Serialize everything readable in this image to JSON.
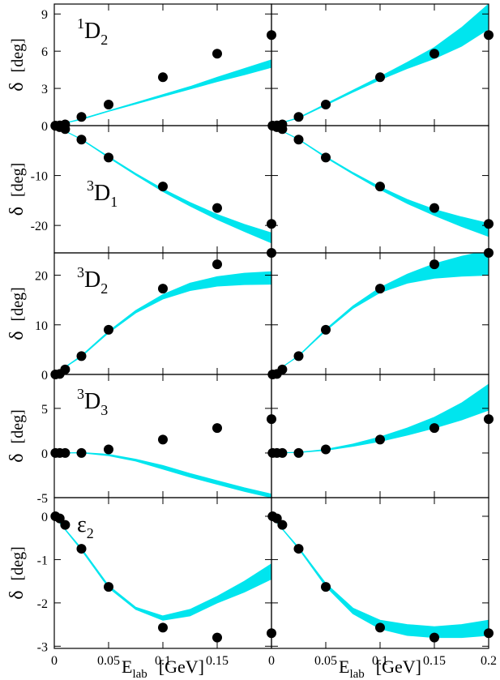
{
  "chart_data": [
    {
      "type": "scatter",
      "label": {
        "pre": "1",
        "base": "D",
        "sub": "2"
      },
      "ylabel": {
        "symbol": "δ",
        "unit": "[deg]"
      },
      "x": [
        0.001,
        0.005,
        0.01,
        0.025,
        0.05,
        0.1,
        0.15,
        0.2
      ],
      "values": [
        0,
        0.02,
        0.1,
        0.7,
        1.7,
        3.9,
        5.8,
        7.3
      ],
      "color": "#000000",
      "band": {
        "x": [
          0,
          0.025,
          0.05,
          0.075,
          0.1,
          0.125,
          0.15,
          0.175,
          0.2
        ],
        "lower": [
          0,
          0.5,
          1.15,
          1.75,
          2.35,
          2.95,
          3.55,
          4.1,
          4.7
        ],
        "upper": [
          0,
          0.55,
          1.2,
          1.85,
          2.5,
          3.15,
          3.9,
          4.6,
          5.3
        ],
        "color": "#00e5ee"
      },
      "xlim": [
        0,
        0.2
      ],
      "ylim": [
        0,
        9.8
      ],
      "xticks": [
        0,
        0.05,
        0.1,
        0.15
      ],
      "yticks": [
        0,
        3,
        6,
        9
      ],
      "xtick_labels": false,
      "ytick_labels": true
    },
    {
      "type": "scatter",
      "x": [
        0.001,
        0.005,
        0.01,
        0.025,
        0.05,
        0.1,
        0.15,
        0.2
      ],
      "values": [
        0,
        0.02,
        0.1,
        0.7,
        1.7,
        3.9,
        5.8,
        7.3
      ],
      "color": "#000000",
      "band": {
        "x": [
          0,
          0.025,
          0.05,
          0.075,
          0.1,
          0.125,
          0.15,
          0.175,
          0.2
        ],
        "lower": [
          0,
          0.6,
          1.65,
          2.7,
          3.7,
          4.6,
          5.4,
          6.4,
          7.8
        ],
        "upper": [
          0,
          0.65,
          1.75,
          2.85,
          3.95,
          5.1,
          6.3,
          7.9,
          9.8
        ],
        "color": "#00e5ee"
      },
      "xlim": [
        0,
        0.2
      ],
      "ylim": [
        0,
        9.8
      ],
      "xticks": [
        0,
        0.05,
        0.1,
        0.15,
        0.2
      ],
      "yticks": [
        0,
        3,
        6,
        9
      ],
      "xtick_labels": false,
      "ytick_labels": false
    },
    {
      "type": "scatter",
      "label": {
        "pre": "3",
        "base": "D",
        "sub": "1"
      },
      "ylabel": {
        "symbol": "δ",
        "unit": "[deg]"
      },
      "x": [
        0.001,
        0.005,
        0.01,
        0.025,
        0.05,
        0.1,
        0.15,
        0.2
      ],
      "values": [
        -0.05,
        -0.3,
        -0.7,
        -2.8,
        -6.4,
        -12.2,
        -16.5,
        -19.7
      ],
      "color": "#000000",
      "band": {
        "x": [
          0,
          0.025,
          0.05,
          0.075,
          0.1,
          0.125,
          0.15,
          0.175,
          0.2
        ],
        "lower": [
          0,
          -2.8,
          -6.4,
          -9.9,
          -13.2,
          -16.1,
          -18.8,
          -21.2,
          -23.5
        ],
        "upper": [
          0,
          -2.7,
          -6.2,
          -9.6,
          -12.7,
          -15.4,
          -17.8,
          -19.8,
          -21.5
        ],
        "color": "#00e5ee"
      },
      "xlim": [
        0,
        0.2
      ],
      "ylim": [
        -25.5,
        0
      ],
      "xticks": [
        0,
        0.05,
        0.1,
        0.15
      ],
      "yticks": [
        -20,
        -10
      ],
      "xtick_labels": false,
      "ytick_labels": true
    },
    {
      "type": "scatter",
      "x": [
        0.001,
        0.005,
        0.01,
        0.025,
        0.05,
        0.1,
        0.15,
        0.2
      ],
      "values": [
        -0.05,
        -0.3,
        -0.7,
        -2.8,
        -6.4,
        -12.2,
        -16.5,
        -19.7
      ],
      "color": "#000000",
      "band": {
        "x": [
          0,
          0.025,
          0.05,
          0.075,
          0.1,
          0.125,
          0.15,
          0.175,
          0.2
        ],
        "lower": [
          0,
          -2.8,
          -6.4,
          -9.7,
          -12.8,
          -15.6,
          -18,
          -20.2,
          -22.2
        ],
        "upper": [
          0,
          -2.7,
          -6.2,
          -9.4,
          -12.3,
          -14.8,
          -16.8,
          -18.3,
          -19.6
        ],
        "color": "#00e5ee"
      },
      "xlim": [
        0,
        0.2
      ],
      "ylim": [
        -25.5,
        0
      ],
      "xticks": [
        0,
        0.05,
        0.1,
        0.15,
        0.2
      ],
      "yticks": [
        -20,
        -10
      ],
      "xtick_labels": false,
      "ytick_labels": false
    },
    {
      "type": "scatter",
      "label": {
        "pre": "3",
        "base": "D",
        "sub": "2"
      },
      "ylabel": {
        "symbol": "δ",
        "unit": "[deg]"
      },
      "x": [
        0.001,
        0.005,
        0.01,
        0.025,
        0.05,
        0.1,
        0.15,
        0.2
      ],
      "values": [
        0,
        0.1,
        1,
        3.7,
        9,
        17.3,
        22.2,
        24.5
      ],
      "color": "#000000",
      "band": {
        "x": [
          0,
          0.025,
          0.05,
          0.075,
          0.1,
          0.125,
          0.15,
          0.175,
          0.2
        ],
        "lower": [
          0,
          3.6,
          8.4,
          12.4,
          15.2,
          16.9,
          17.8,
          18.1,
          18.2
        ],
        "upper": [
          0,
          3.8,
          8.7,
          12.9,
          16.1,
          18.4,
          19.7,
          20.4,
          20.7
        ],
        "color": "#00e5ee"
      },
      "xlim": [
        0,
        0.2
      ],
      "ylim": [
        0,
        24.5
      ],
      "xticks": [
        0,
        0.05,
        0.1,
        0.15
      ],
      "yticks": [
        0,
        10,
        20
      ],
      "xtick_labels": false,
      "ytick_labels": true
    },
    {
      "type": "scatter",
      "x": [
        0.001,
        0.005,
        0.01,
        0.025,
        0.05,
        0.1,
        0.15,
        0.2
      ],
      "values": [
        0,
        0.1,
        1,
        3.7,
        9,
        17.3,
        22.2,
        24.5
      ],
      "color": "#000000",
      "band": {
        "x": [
          0,
          0.025,
          0.05,
          0.075,
          0.1,
          0.125,
          0.15,
          0.175,
          0.2
        ],
        "lower": [
          0,
          3.7,
          8.8,
          13.3,
          16.5,
          18.4,
          19.4,
          19.8,
          20
        ],
        "upper": [
          0,
          3.8,
          9.1,
          13.8,
          17.5,
          20.2,
          22.3,
          23.8,
          25
        ],
        "color": "#00e5ee"
      },
      "xlim": [
        0,
        0.2
      ],
      "ylim": [
        0,
        24.5
      ],
      "xticks": [
        0,
        0.05,
        0.1,
        0.15,
        0.2
      ],
      "yticks": [
        0,
        10,
        20
      ],
      "xtick_labels": false,
      "ytick_labels": false
    },
    {
      "type": "scatter",
      "label": {
        "pre": "3",
        "base": "D",
        "sub": "3"
      },
      "ylabel": {
        "symbol": "δ",
        "unit": "[deg]"
      },
      "x": [
        0.001,
        0.005,
        0.01,
        0.025,
        0.05,
        0.1,
        0.15,
        0.2
      ],
      "values": [
        0,
        0,
        0,
        0,
        0.4,
        1.5,
        2.8,
        3.8
      ],
      "color": "#000000",
      "band": {
        "x": [
          0,
          0.025,
          0.05,
          0.075,
          0.1,
          0.125,
          0.15,
          0.175,
          0.2
        ],
        "lower": [
          0,
          0.02,
          -0.3,
          -0.9,
          -1.8,
          -2.7,
          -3.5,
          -4.3,
          -5
        ],
        "upper": [
          0,
          0.05,
          -0.15,
          -0.7,
          -1.4,
          -2.3,
          -3.1,
          -3.9,
          -4.6
        ],
        "color": "#00e5ee"
      },
      "xlim": [
        0,
        0.2
      ],
      "ylim": [
        -5,
        8.8
      ],
      "xticks": [
        0,
        0.05,
        0.1,
        0.15
      ],
      "yticks": [
        -5,
        0,
        5
      ],
      "xtick_labels": false,
      "ytick_labels": true
    },
    {
      "type": "scatter",
      "x": [
        0.001,
        0.005,
        0.01,
        0.025,
        0.05,
        0.1,
        0.15,
        0.2
      ],
      "values": [
        0,
        0,
        0,
        0,
        0.4,
        1.5,
        2.8,
        3.8
      ],
      "color": "#000000",
      "band": {
        "x": [
          0,
          0.025,
          0.05,
          0.075,
          0.1,
          0.125,
          0.15,
          0.175,
          0.2
        ],
        "lower": [
          0,
          0.05,
          0.3,
          0.75,
          1.3,
          2,
          2.8,
          3.7,
          4.8
        ],
        "upper": [
          0,
          0.08,
          0.4,
          1,
          1.8,
          2.8,
          4,
          5.6,
          7.7
        ],
        "color": "#00e5ee"
      },
      "xlim": [
        0,
        0.2
      ],
      "ylim": [
        -5,
        8.8
      ],
      "xticks": [
        0,
        0.05,
        0.1,
        0.15,
        0.2
      ],
      "yticks": [
        -5,
        0,
        5
      ],
      "xtick_labels": false,
      "ytick_labels": false
    },
    {
      "type": "scatter",
      "label": {
        "base": "ε",
        "sub": "2"
      },
      "ylabel": {
        "symbol": "δ",
        "unit": "[deg]"
      },
      "xlabel": {
        "base": "E",
        "sub": "lab",
        "unit": "[GeV]"
      },
      "x": [
        0.001,
        0.005,
        0.01,
        0.025,
        0.05,
        0.1,
        0.15,
        0.2
      ],
      "values": [
        0,
        -0.05,
        -0.2,
        -0.75,
        -1.63,
        -2.57,
        -2.8,
        -2.7
      ],
      "color": "#000000",
      "band": {
        "x": [
          0,
          0.025,
          0.05,
          0.075,
          0.1,
          0.125,
          0.15,
          0.175,
          0.2
        ],
        "lower": [
          0,
          -0.78,
          -1.65,
          -2.15,
          -2.4,
          -2.3,
          -2.0,
          -1.75,
          -1.45
        ],
        "upper": [
          0,
          -0.74,
          -1.6,
          -2.1,
          -2.3,
          -2.15,
          -1.85,
          -1.5,
          -1.1
        ],
        "color": "#00e5ee"
      },
      "xlim": [
        0,
        0.2
      ],
      "ylim": [
        -3.05,
        0.43
      ],
      "xticks": [
        0,
        0.05,
        0.1,
        0.15
      ],
      "yticks": [
        -3,
        -2,
        -1,
        0
      ],
      "xtick_labels": true,
      "ytick_labels": true
    },
    {
      "type": "scatter",
      "xlabel": {
        "base": "E",
        "sub": "lab",
        "unit": "[GeV]"
      },
      "x": [
        0.001,
        0.005,
        0.01,
        0.025,
        0.05,
        0.1,
        0.15,
        0.2
      ],
      "values": [
        0,
        -0.05,
        -0.2,
        -0.75,
        -1.63,
        -2.57,
        -2.8,
        -2.7
      ],
      "color": "#000000",
      "band": {
        "x": [
          0,
          0.025,
          0.05,
          0.075,
          0.1,
          0.125,
          0.15,
          0.175,
          0.2
        ],
        "lower": [
          0,
          -0.75,
          -1.62,
          -2.25,
          -2.6,
          -2.75,
          -2.8,
          -2.8,
          -2.75
        ],
        "upper": [
          0,
          -0.72,
          -1.55,
          -2.12,
          -2.4,
          -2.5,
          -2.55,
          -2.5,
          -2.4
        ],
        "color": "#00e5ee"
      },
      "xlim": [
        0,
        0.2
      ],
      "ylim": [
        -3.05,
        0.43
      ],
      "xticks": [
        0,
        0.05,
        0.1,
        0.15,
        0.2
      ],
      "yticks": [
        -3,
        -2,
        -1,
        0
      ],
      "xtick_labels": true,
      "ytick_labels": false
    }
  ]
}
